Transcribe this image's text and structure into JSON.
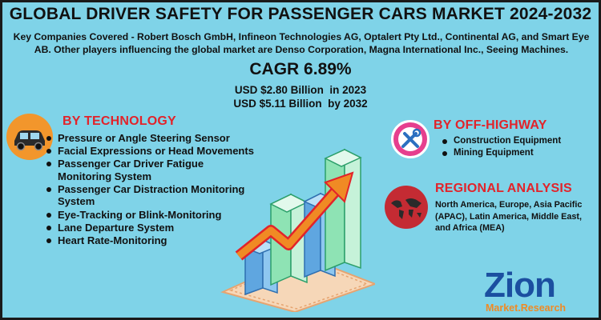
{
  "title": "GLOBAL DRIVER SAFETY FOR PASSENGER CARS MARKET 2024-2032",
  "subtitle": "Key Companies Covered - Robert Bosch GmbH, Infineon Technologies AG, Optalert Pty Ltd., Continental AG, and Smart Eye AB. Other players influencing the global market are Denso Corporation, Magna International Inc., Seeing Machines.",
  "cagr": "CAGR 6.89%",
  "usd": [
    "USD $2.80 Billion  in 2023",
    "USD $5.11 Billion  by 2032"
  ],
  "technology": {
    "title": "BY TECHNOLOGY",
    "icon": "car-icon",
    "items": [
      "Pressure or Angle Steering Sensor",
      "Facial Expressions or Head Movements",
      "Passenger Car Driver Fatigue Monitoring System",
      "Passenger Car Distraction Monitoring System",
      "Eye-Tracking or Blink-Monitoring",
      "Lane Departure System",
      "Heart Rate-Monitoring"
    ]
  },
  "off_highway": {
    "title": "BY OFF-HIGHWAY",
    "icon": "tools-icon",
    "items": [
      "Construction Equipment",
      "Mining Equipment"
    ]
  },
  "regional": {
    "title": "REGIONAL ANALYSIS",
    "icon": "world-map-icon",
    "text": "North America, Europe, Asia Pacific (APAC), Latin America, Middle East, and Africa (MEA)"
  },
  "logo": {
    "name": "Zion",
    "sub_a": "Market",
    "sub_b": ".Research"
  },
  "colors": {
    "background": "#7fd3e8",
    "accent_red": "#e2232a",
    "bar_green": "#8ee3b4",
    "bar_blue": "#5fa6e0",
    "arrow_orange": "#f08a24"
  }
}
